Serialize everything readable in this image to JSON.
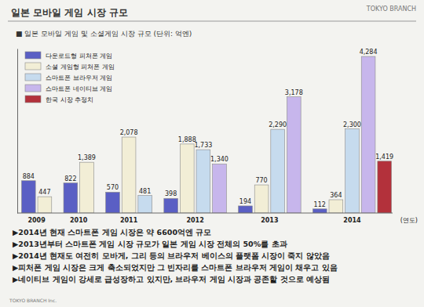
{
  "page": {
    "title": "일본 모바일 게임 시장 규모",
    "brand": "TOKYO BRANCH",
    "footer": "TOKYO BRANCH Inc.",
    "bullets": [
      "▶2014년 현재 스마트폰 게임 시장은 약 6600억엔 규모",
      "▶2013년부터 스마트폰 게임 시장 규모가 일본 게임 시장 전체의 50%를 초과",
      "▶2014년 현재도 여전히 모바게, 그리 등의 브라우저 베이스의 플랫폼 시장이 죽지 않았음",
      "▶피처폰 게임 시장은 크게 축소되었지만 그 빈자리를 스마트폰 브라우저 게임이 채우고 있음",
      "▶네이티브 게임이 강세로 급성장하고 있지만, 브라우저 게임 시장과 공존할 것으로 예상됨"
    ]
  },
  "chart_data": {
    "type": "bar",
    "title": "■ 일본 모바일 게임 및 소셜게임 시장 규모 (단위: 억엔)",
    "x_label": "(연도)",
    "categories": [
      "2009",
      "2010",
      "2011",
      "2012",
      "2013",
      "2014"
    ],
    "series": [
      {
        "name": "다운로드형 피처폰 게임",
        "color": "#5a5fc4",
        "values": [
          884,
          822,
          570,
          398,
          194,
          112
        ]
      },
      {
        "name": "소셜 게임형 피처폰 게임",
        "color": "#f2eed6",
        "values": [
          447,
          1389,
          2078,
          1888,
          770,
          364
        ],
        "value_labels": [
          "447",
          "1,389",
          "2,078",
          "1,888",
          "770",
          "364"
        ]
      },
      {
        "name": "스마트폰 브라우저 게임",
        "color": "#c6dbee",
        "values": [
          null,
          null,
          481,
          1733,
          2290,
          2300
        ],
        "value_labels": [
          null,
          null,
          "481",
          "1,733",
          "2,290",
          "2,300"
        ]
      },
      {
        "name": "스마트폰 네이티브 게임",
        "color": "#c7b6ec",
        "values": [
          null,
          null,
          null,
          1340,
          3178,
          4284
        ],
        "value_labels": [
          null,
          null,
          null,
          "1,340",
          "3,178",
          "4,284"
        ]
      },
      {
        "name": "한국 시장 추정치",
        "color": "#b3313b",
        "values": [
          null,
          null,
          null,
          null,
          null,
          1419
        ],
        "value_labels": [
          null,
          null,
          null,
          null,
          null,
          "1,419"
        ]
      }
    ],
    "ylim": [
      0,
      4500
    ],
    "grid": false,
    "legend": "upper left",
    "data_labels": true,
    "tick_labels": "x"
  }
}
